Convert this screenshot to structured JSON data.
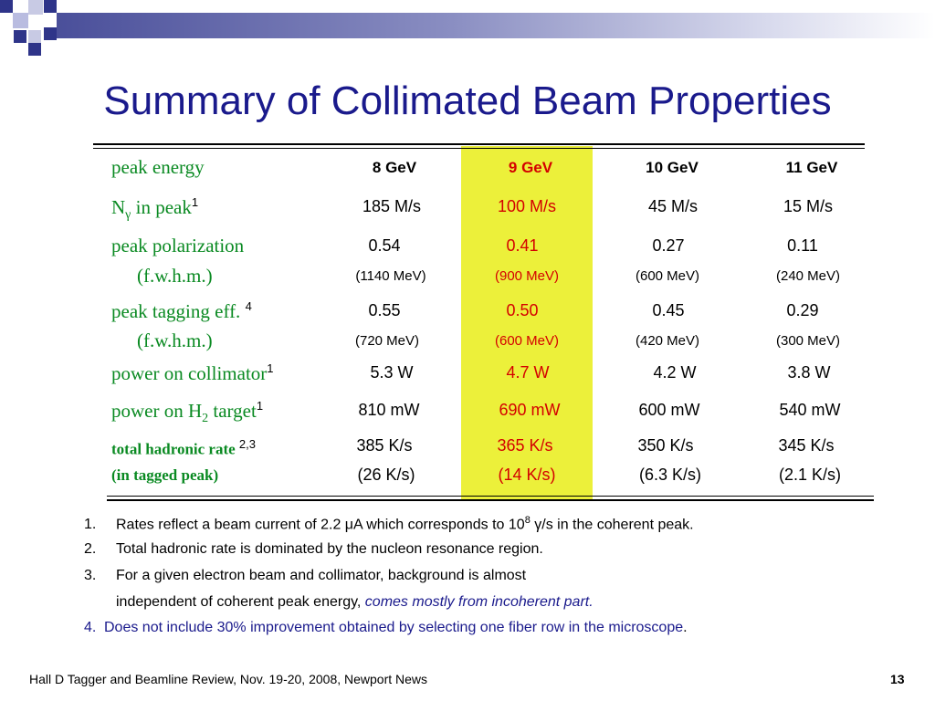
{
  "title": "Summary of Collimated Beam Properties",
  "columns": [
    "8 GeV",
    "9 GeV",
    "10 GeV",
    "11 GeV"
  ],
  "rows": {
    "peak_energy": {
      "label": "peak energy"
    },
    "n_gamma": {
      "label_n": "N",
      "label_sub": "γ",
      "label_rest": " in peak",
      "sup": "1",
      "values": [
        "185 M/s",
        "100 M/s",
        "45 M/s",
        "15 M/s"
      ]
    },
    "polarization": {
      "label": "peak polarization",
      "sub_label": "(f.w.h.m.)",
      "values": [
        "0.54",
        "0.41",
        "0.27",
        "0.11"
      ],
      "fwhm": [
        "(1140 MeV)",
        "(900 MeV)",
        "(600 MeV)",
        "(240 MeV)"
      ]
    },
    "tagging": {
      "label": "peak tagging eff.",
      "sup": "4",
      "sub_label": "(f.w.h.m.)",
      "values": [
        "0.55",
        "0.50",
        "0.45",
        "0.29"
      ],
      "fwhm": [
        "(720 MeV)",
        "(600 MeV)",
        "(420 MeV)",
        "(300 MeV)"
      ]
    },
    "power_collimator": {
      "label": "power on collimator",
      "sup": "1",
      "values": [
        "5.3 W",
        "4.7 W",
        "4.2 W",
        "3.8 W"
      ]
    },
    "power_h2": {
      "label_a": "power on H",
      "label_sub": "2",
      "label_b": " target",
      "sup": "1",
      "values": [
        "810 mW",
        "690 mW",
        "600 mW",
        "540 mW"
      ]
    },
    "hadronic": {
      "label": "total hadronic rate",
      "sup": "2,3",
      "sub_label": "(in tagged peak)",
      "values": [
        "385 K/s",
        "365 K/s",
        "350 K/s",
        "345 K/s"
      ],
      "tagged": [
        "(26 K/s)",
        "(14 K/s)",
        "(6.3 K/s)",
        "(2.1 K/s)"
      ]
    }
  },
  "notes": {
    "n1_num": "1.",
    "n1_a": "Rates reflect a beam current of 2.2 ",
    "n1_mu": "μ",
    "n1_b": "A which corresponds to 10",
    "n1_exp": "8",
    "n1_gamma": " γ",
    "n1_c": "/s in the coherent peak.",
    "n2_num": "2.",
    "n2": "Total hadronic rate is dominated by the nucleon resonance region.",
    "n3_num": "3.",
    "n3_line1": "For a given electron beam and collimator, background is almost",
    "n3_line2": "independent of coherent peak energy, ",
    "n3_italic": "comes mostly from incoherent part.",
    "n4_num": "4.",
    "n4": "Does not include 30% improvement obtained by selecting one fiber row in the microscope",
    "n4_end": "."
  },
  "footer": {
    "left": "Hall D Tagger and Beamline Review, Nov. 19-20, 2008, Newport News",
    "page": "13"
  },
  "colors": {
    "title": "#1a1a8c",
    "label_green": "#0a8a22",
    "highlight": "#ecf03a",
    "red": "#d40000"
  }
}
